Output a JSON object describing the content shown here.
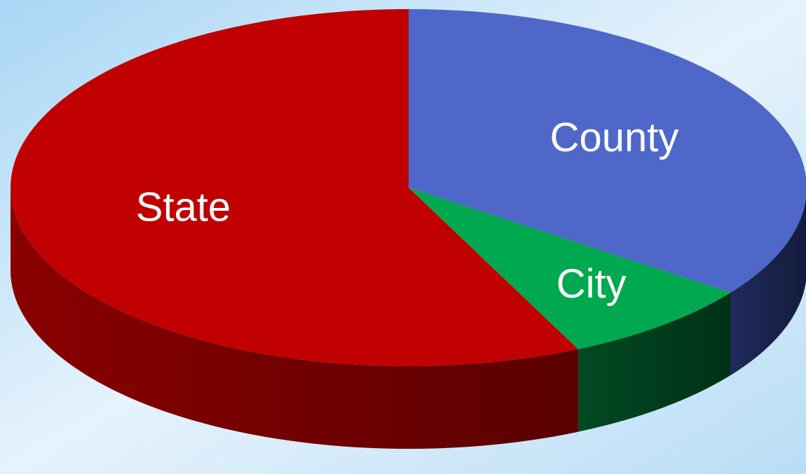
{
  "chart_data": {
    "type": "pie",
    "categories": [
      "State",
      "County",
      "City"
    ],
    "values": [
      57,
      35,
      8
    ],
    "colors": [
      "#c00000",
      "#4f67c8",
      "#00a84f"
    ],
    "side_colors": [
      "#8a0000",
      "#1f2a5c",
      "#004a22"
    ]
  }
}
